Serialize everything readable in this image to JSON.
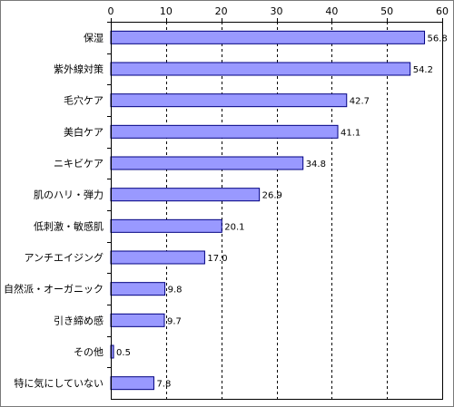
{
  "chart_data": {
    "type": "bar",
    "orientation": "horizontal",
    "title": "",
    "xlabel": "",
    "ylabel": "",
    "xlim": [
      0,
      60
    ],
    "x_ticks": [
      0,
      10,
      20,
      30,
      40,
      50,
      60
    ],
    "x_axis_position": "top",
    "grid": "vertical dashed",
    "legend": "none",
    "bar_color": "#9999ff",
    "bar_edge_color": "#000080",
    "categories": [
      "保湿",
      "紫外線対策",
      "毛穴ケア",
      "美白ケア",
      "ニキビケア",
      "肌のハリ・弾力",
      "低刺激・敏感肌",
      "アンチエイジング",
      "自然派・オーガニック",
      "引き締め感",
      "その他",
      "特に気にしていない"
    ],
    "values": [
      56.8,
      54.2,
      42.7,
      41.1,
      34.8,
      26.9,
      20.1,
      17.0,
      9.8,
      9.7,
      0.5,
      7.8
    ],
    "value_labels": [
      "56.8",
      "54.2",
      "42.7",
      "41.1",
      "34.8",
      "26.9",
      "20.1",
      "17.0",
      "9.8",
      "9.7",
      "0.5",
      "7.8"
    ]
  }
}
